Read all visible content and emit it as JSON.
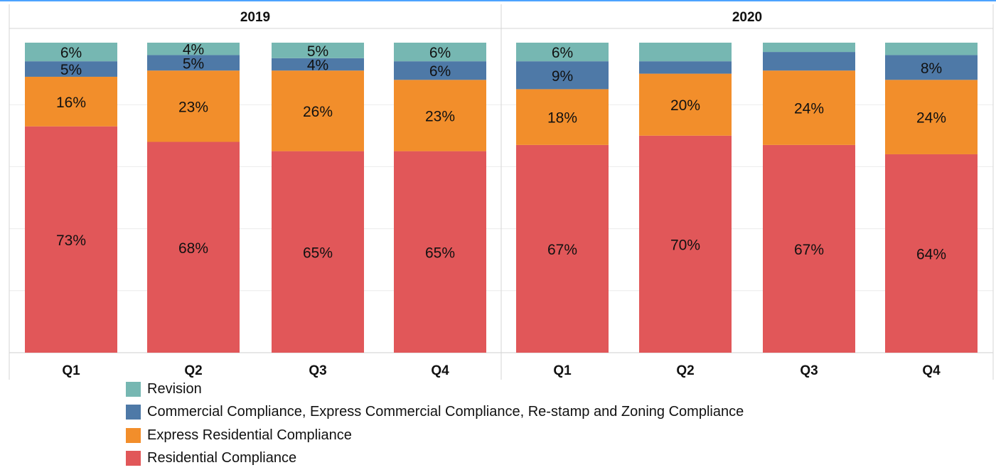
{
  "chart_data": {
    "type": "bar",
    "stacked": true,
    "normalized": true,
    "grid": true,
    "legend_position": "bottom",
    "groups": [
      "2019",
      "2020"
    ],
    "categories": [
      "Q1",
      "Q2",
      "Q3",
      "Q4"
    ],
    "ylim": [
      0,
      1
    ],
    "series": [
      {
        "name": "Residential Compliance",
        "color": "#E15759",
        "values": [
          [
            0.73,
            0.68,
            0.65,
            0.65
          ],
          [
            0.67,
            0.7,
            0.67,
            0.64
          ]
        ],
        "labels": [
          [
            "73%",
            "68%",
            "65%",
            "65%"
          ],
          [
            "67%",
            "70%",
            "67%",
            "64%"
          ]
        ]
      },
      {
        "name": "Express Residential Compliance",
        "color": "#F28E2B",
        "values": [
          [
            0.16,
            0.23,
            0.26,
            0.23
          ],
          [
            0.18,
            0.2,
            0.24,
            0.24
          ]
        ],
        "labels": [
          [
            "16%",
            "23%",
            "26%",
            "23%"
          ],
          [
            "18%",
            "20%",
            "24%",
            "24%"
          ]
        ]
      },
      {
        "name": "Commercial Compliance, Express Commercial Compliance, Re-stamp and Zoning Compliance",
        "color": "#4E79A7",
        "values": [
          [
            0.05,
            0.05,
            0.04,
            0.06
          ],
          [
            0.09,
            0.04,
            0.06,
            0.08
          ]
        ],
        "labels": [
          [
            "5%",
            "5%",
            "4%",
            "6%"
          ],
          [
            "9%",
            "",
            "",
            "8%"
          ]
        ]
      },
      {
        "name": "Revision",
        "color": "#76B7B2",
        "values": [
          [
            0.06,
            0.04,
            0.05,
            0.06
          ],
          [
            0.06,
            0.06,
            0.03,
            0.04
          ]
        ],
        "labels": [
          [
            "6%",
            "4%",
            "5%",
            "6%"
          ],
          [
            "6%",
            "",
            "",
            ""
          ]
        ]
      }
    ],
    "legend_order": [
      "Revision",
      "Commercial Compliance, Express Commercial Compliance, Re-stamp and Zoning Compliance",
      "Express Residential Compliance",
      "Residential Compliance"
    ]
  }
}
